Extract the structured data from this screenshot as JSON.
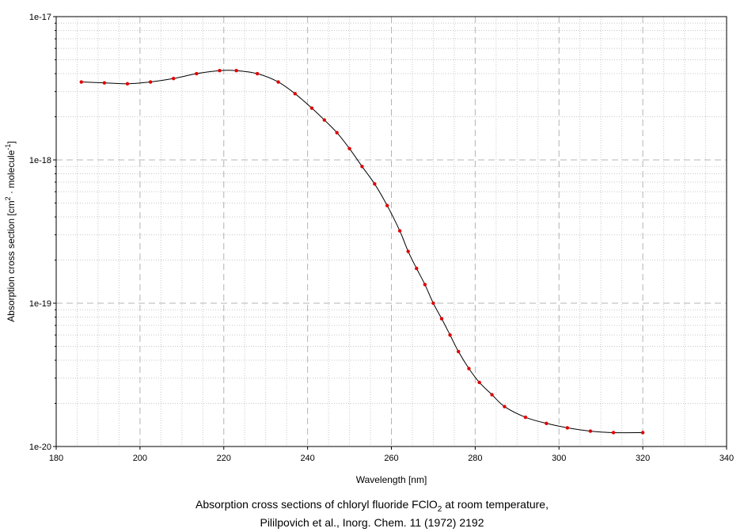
{
  "chart_data": {
    "type": "line",
    "xlabel": "Wavelength [nm]",
    "ylabel_parts": [
      "Absorption cross section [cm",
      "2",
      " · molecule",
      "-1",
      "]"
    ],
    "xlim": [
      180,
      340
    ],
    "ylim": [
      1e-20,
      1e-17
    ],
    "yscale": "log",
    "grid": true,
    "x_ticks": [
      180,
      200,
      220,
      240,
      260,
      280,
      300,
      320,
      340
    ],
    "y_ticks": [
      {
        "value": 1e-20,
        "label": "1e-20"
      },
      {
        "value": 1e-19,
        "label": "1e-19"
      },
      {
        "value": 1e-18,
        "label": "1e-18"
      },
      {
        "value": 1e-17,
        "label": "1e-17"
      }
    ],
    "line_color": "#000000",
    "marker_color": "#e00000",
    "series": [
      {
        "x": [
          186,
          191.5,
          197,
          202.5,
          208,
          213.5,
          219,
          223,
          228,
          233,
          237,
          241,
          244,
          247,
          250,
          253,
          256,
          259,
          262,
          264,
          266,
          268,
          270,
          272,
          274,
          276,
          278.5,
          281,
          284,
          287,
          292,
          297,
          302,
          307.5,
          313,
          320
        ],
        "y": [
          3.5e-18,
          3.45e-18,
          3.4e-18,
          3.5e-18,
          3.7e-18,
          4e-18,
          4.2e-18,
          4.2e-18,
          4e-18,
          3.5e-18,
          2.9e-18,
          2.3e-18,
          1.9e-18,
          1.55e-18,
          1.2e-18,
          9e-19,
          6.8e-19,
          4.8e-19,
          3.2e-19,
          2.3e-19,
          1.75e-19,
          1.35e-19,
          1e-19,
          7.8e-20,
          6e-20,
          4.6e-20,
          3.5e-20,
          2.8e-20,
          2.3e-20,
          1.9e-20,
          1.6e-20,
          1.45e-20,
          1.35e-20,
          1.28e-20,
          1.25e-20,
          1.25e-20
        ]
      }
    ]
  },
  "caption": {
    "line1_pre": "Absorption cross sections of chloryl fluoride FClO",
    "line1_sub": "2",
    "line1_post": " at room temperature,",
    "line2": "Pililpovich et al., Inorg. Chem. 11 (1972) 2192"
  }
}
